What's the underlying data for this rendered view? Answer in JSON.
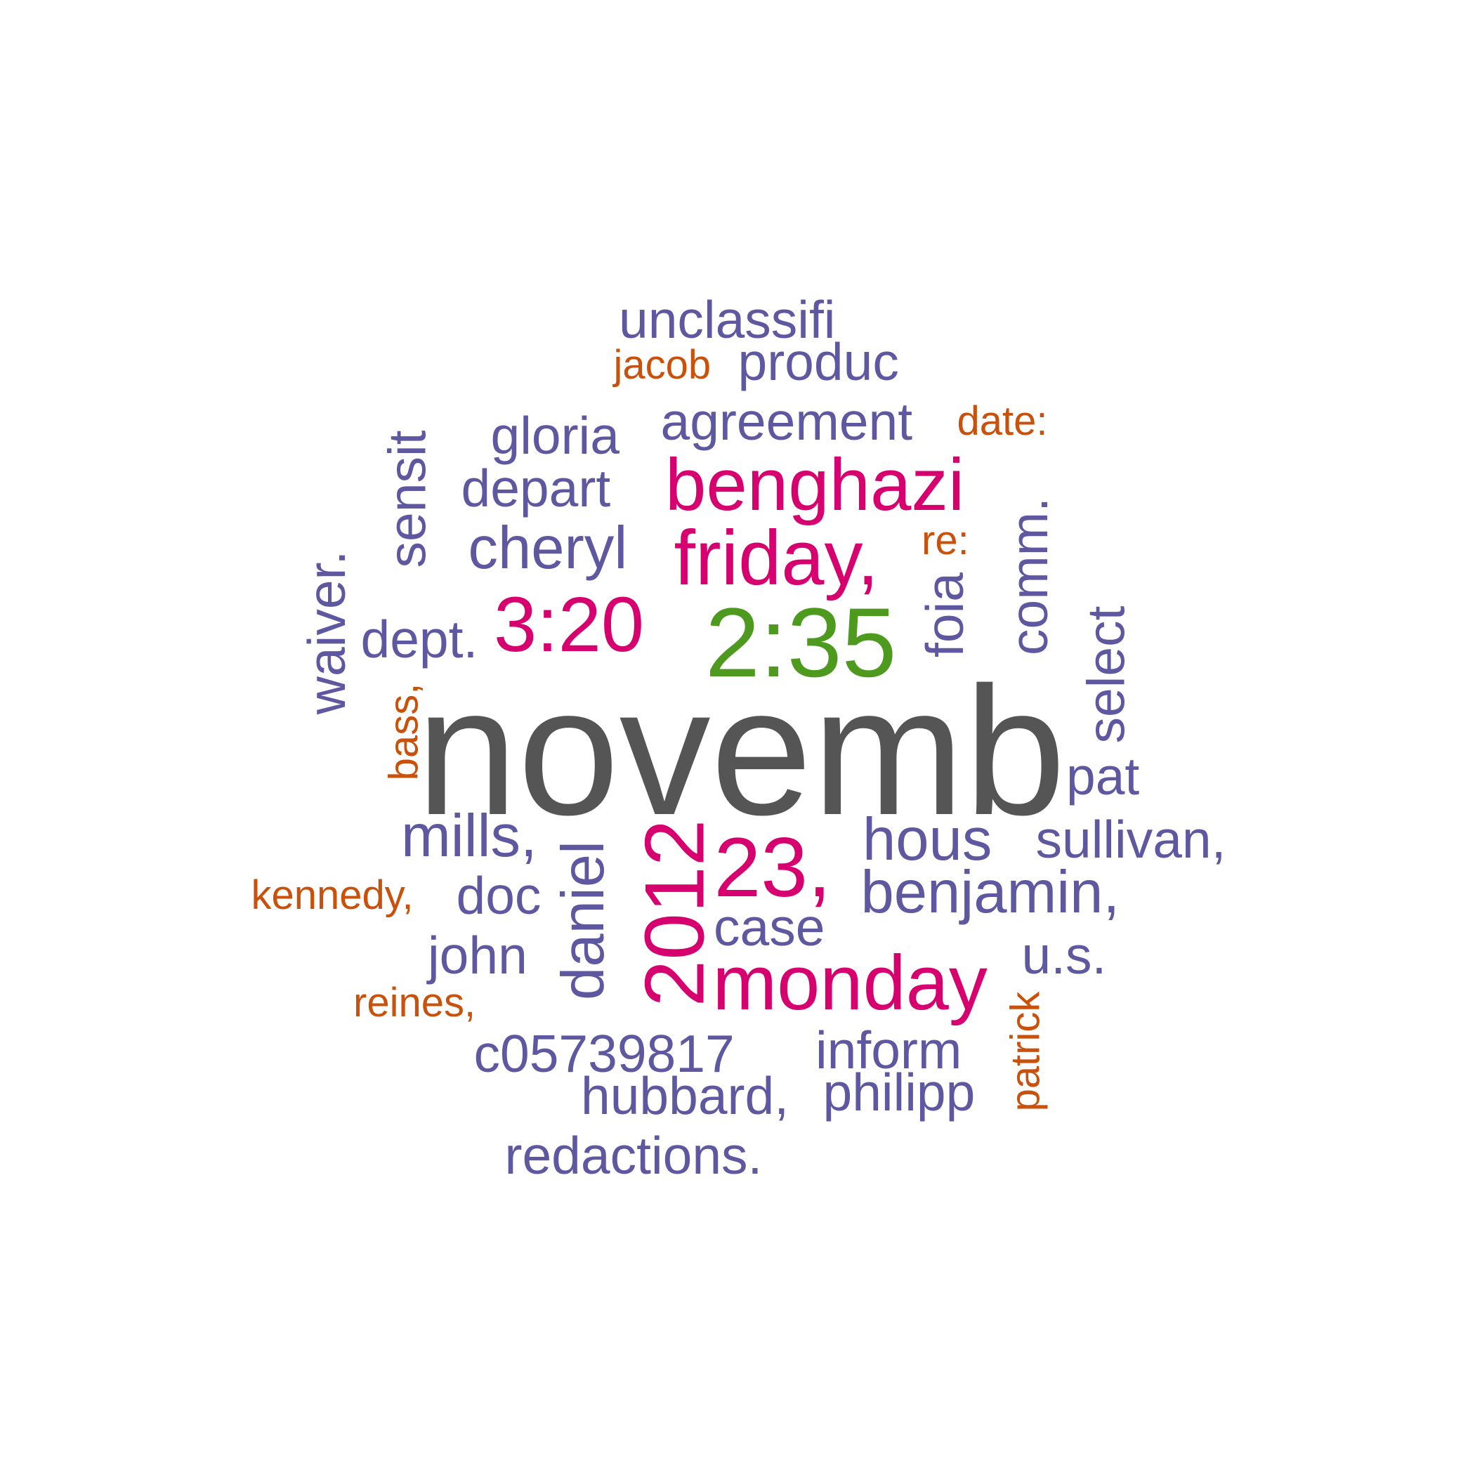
{
  "colors": {
    "dark_gray": "#555555",
    "green": "#4e9a1e",
    "magenta": "#d6006e",
    "purple": "#5e58a0",
    "orange": "#c8510c"
  },
  "words": [
    {
      "text": "novemb",
      "color": "dark_gray",
      "rotated": false
    },
    {
      "text": "2:35",
      "color": "green",
      "rotated": false
    },
    {
      "text": "benghazi",
      "color": "magenta",
      "rotated": false
    },
    {
      "text": "friday,",
      "color": "magenta",
      "rotated": false
    },
    {
      "text": "3:20",
      "color": "magenta",
      "rotated": false
    },
    {
      "text": "23,",
      "color": "magenta",
      "rotated": false
    },
    {
      "text": "2012",
      "color": "magenta",
      "rotated": true
    },
    {
      "text": "monday",
      "color": "magenta",
      "rotated": false
    },
    {
      "text": "unclassifi",
      "color": "purple",
      "rotated": false
    },
    {
      "text": "produc",
      "color": "purple",
      "rotated": false
    },
    {
      "text": "agreement",
      "color": "purple",
      "rotated": false
    },
    {
      "text": "gloria",
      "color": "purple",
      "rotated": false
    },
    {
      "text": "depart",
      "color": "purple",
      "rotated": false
    },
    {
      "text": "cheryl",
      "color": "purple",
      "rotated": false
    },
    {
      "text": "sensit",
      "color": "purple",
      "rotated": true
    },
    {
      "text": "waiver.",
      "color": "purple",
      "rotated": true
    },
    {
      "text": "dept.",
      "color": "purple",
      "rotated": false
    },
    {
      "text": "foia",
      "color": "purple",
      "rotated": true
    },
    {
      "text": "comm.",
      "color": "purple",
      "rotated": true
    },
    {
      "text": "select",
      "color": "purple",
      "rotated": true
    },
    {
      "text": "pat",
      "color": "purple",
      "rotated": false
    },
    {
      "text": "mills,",
      "color": "purple",
      "rotated": false
    },
    {
      "text": "daniel",
      "color": "purple",
      "rotated": true
    },
    {
      "text": "hous",
      "color": "purple",
      "rotated": false
    },
    {
      "text": "sullivan,",
      "color": "purple",
      "rotated": false
    },
    {
      "text": "benjamin,",
      "color": "purple",
      "rotated": false
    },
    {
      "text": "doc",
      "color": "purple",
      "rotated": false
    },
    {
      "text": "case",
      "color": "purple",
      "rotated": false
    },
    {
      "text": "john",
      "color": "purple",
      "rotated": false
    },
    {
      "text": "u.s.",
      "color": "purple",
      "rotated": false
    },
    {
      "text": "c05739817",
      "color": "purple",
      "rotated": false
    },
    {
      "text": "inform",
      "color": "purple",
      "rotated": false
    },
    {
      "text": "hubbard,",
      "color": "purple",
      "rotated": false
    },
    {
      "text": "philipp",
      "color": "purple",
      "rotated": false
    },
    {
      "text": "redactions.",
      "color": "purple",
      "rotated": false
    },
    {
      "text": "jacob",
      "color": "orange",
      "rotated": false
    },
    {
      "text": "date:",
      "color": "orange",
      "rotated": false
    },
    {
      "text": "re:",
      "color": "orange",
      "rotated": false
    },
    {
      "text": "bass,",
      "color": "orange",
      "rotated": true
    },
    {
      "text": "kennedy,",
      "color": "orange",
      "rotated": false
    },
    {
      "text": "reines,",
      "color": "orange",
      "rotated": false
    },
    {
      "text": "patrick",
      "color": "orange",
      "rotated": true
    }
  ]
}
